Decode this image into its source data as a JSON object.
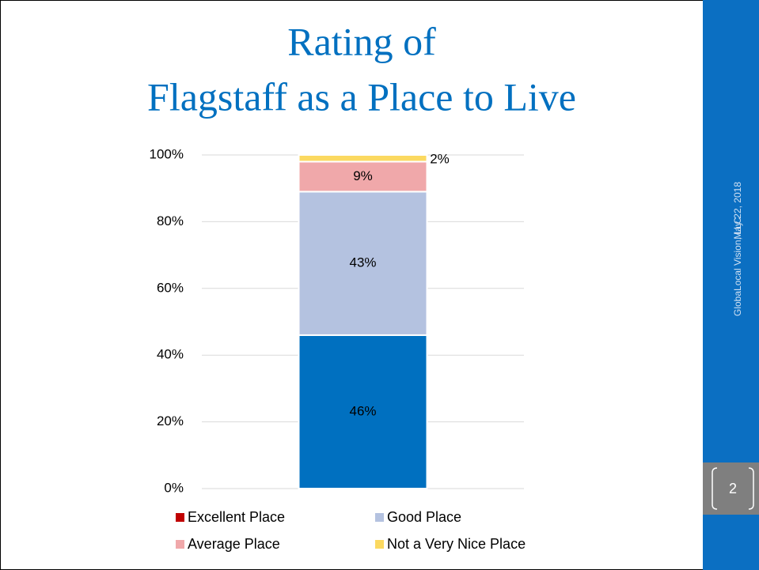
{
  "chart_data": {
    "type": "stacked_bar",
    "title": [
      "Rating of",
      "Flagstaff as a Place to Live"
    ],
    "categories": [
      null
    ],
    "series": [
      {
        "name": "Excellent Place",
        "color": "#0070c0",
        "legend_color": "#c00000",
        "label_color": "#ffffff",
        "values": [
          46
        ],
        "value_labels": [
          "46%"
        ]
      },
      {
        "name": "Good Place",
        "color": "#b4c2e0",
        "legend_color": "#b4c2e0",
        "label_color": "#000000",
        "values": [
          43
        ],
        "value_labels": [
          "43%"
        ]
      },
      {
        "name": "Average Place",
        "color": "#f0a8aa",
        "legend_color": "#f0a8aa",
        "label_color": "#000000",
        "values": [
          9
        ],
        "value_labels": [
          "9%"
        ]
      },
      {
        "name": "Not a Very Nice Place",
        "color": "#fbd960",
        "legend_color": "#fbd960",
        "label_color": "#000000",
        "values": [
          2
        ],
        "value_labels": [
          "2%"
        ]
      }
    ],
    "ylim": [
      0,
      100
    ],
    "yticks": [
      {
        "value": 0,
        "label": "0%"
      },
      {
        "value": 20,
        "label": "20%"
      },
      {
        "value": 40,
        "label": "40%"
      },
      {
        "value": 60,
        "label": "60%"
      },
      {
        "value": 80,
        "label": "80%"
      },
      {
        "value": 100,
        "label": "100%"
      }
    ],
    "grid": true
  },
  "footer": {
    "company": "GlobaLocal Vision, LLC",
    "date": "May 22, 2018",
    "page_number": "2"
  }
}
